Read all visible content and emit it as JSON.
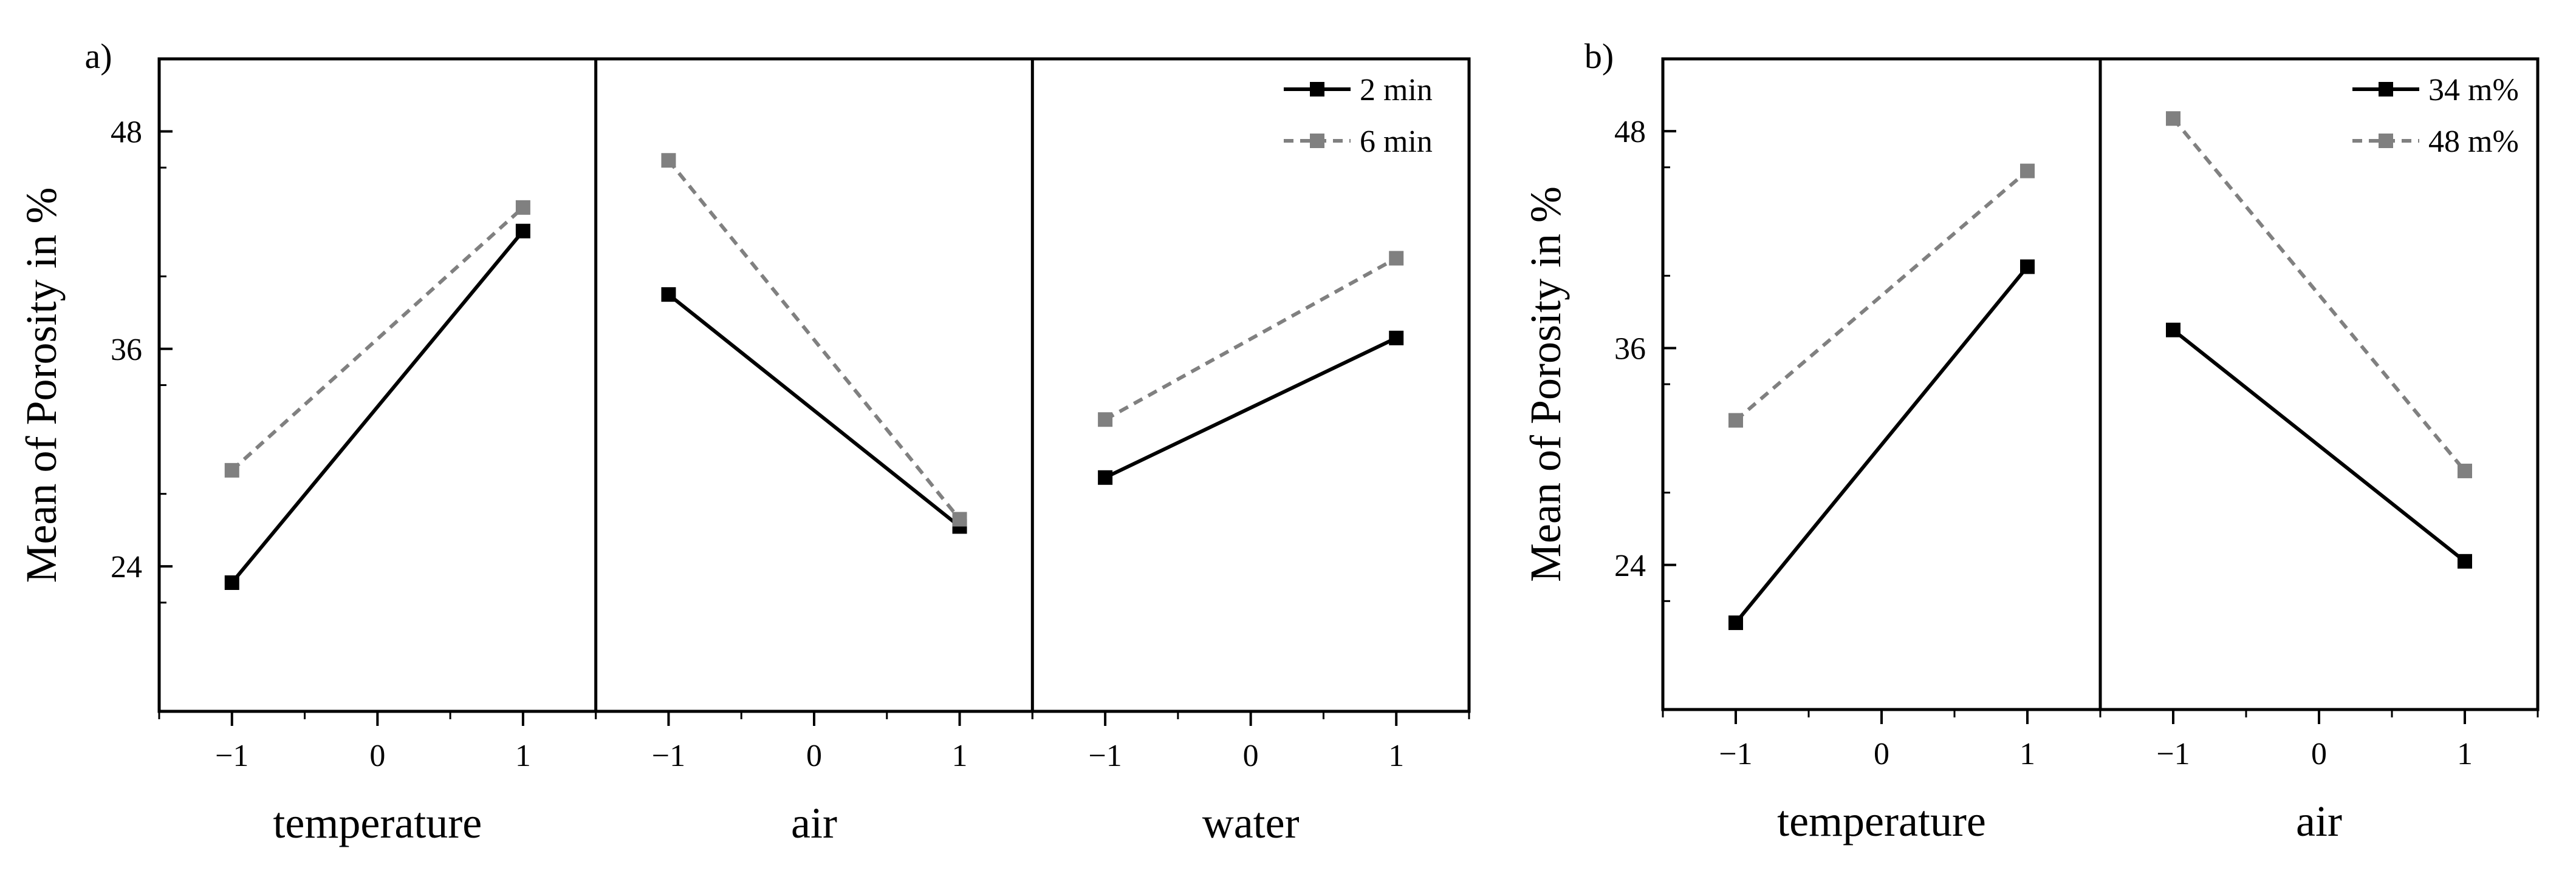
{
  "chart_data": [
    {
      "type": "line",
      "panel_label": "a)",
      "ylabel": "Mean of Porosity in %",
      "ylim": [
        16,
        52
      ],
      "yticks": [
        24,
        36,
        48
      ],
      "y_tick_labels": [
        "24",
        "36",
        "48"
      ],
      "xlim": [
        -1.5,
        1.5
      ],
      "xticks": [
        -1,
        0,
        1
      ],
      "x_tick_labels": [
        "−1",
        "0",
        "1"
      ],
      "legend": {
        "position": "top-right"
      },
      "series": [
        {
          "name": "2 min",
          "color": "#000000",
          "dashed": false
        },
        {
          "name": "6 min",
          "color": "#808080",
          "dashed": true
        }
      ],
      "subplots": [
        {
          "xlabel": "temperature",
          "x": [
            -1,
            1
          ],
          "values": {
            "2 min": [
              23.1,
              42.5
            ],
            "6 min": [
              29.3,
              43.8
            ]
          }
        },
        {
          "xlabel": "air",
          "x": [
            -1,
            1
          ],
          "values": {
            "2 min": [
              39.0,
              26.2
            ],
            "6 min": [
              46.4,
              26.6
            ]
          }
        },
        {
          "xlabel": "water",
          "x": [
            -1,
            1
          ],
          "values": {
            "2 min": [
              28.9,
              36.6
            ],
            "6 min": [
              32.1,
              41.0
            ]
          }
        }
      ]
    },
    {
      "type": "line",
      "panel_label": "b)",
      "ylabel": "Mean of Porosity in %",
      "ylim": [
        16,
        52
      ],
      "yticks": [
        24,
        36,
        48
      ],
      "y_tick_labels": [
        "24",
        "36",
        "48"
      ],
      "xlim": [
        -1.5,
        1.5
      ],
      "xticks": [
        -1,
        0,
        1
      ],
      "x_tick_labels": [
        "−1",
        "0",
        "1"
      ],
      "legend": {
        "position": "top-right"
      },
      "series": [
        {
          "name": "34 m%",
          "color": "#000000",
          "dashed": false
        },
        {
          "name": "48 m%",
          "color": "#808080",
          "dashed": true
        }
      ],
      "subplots": [
        {
          "xlabel": "temperature",
          "x": [
            -1,
            1
          ],
          "values": {
            "34 m%": [
              20.8,
              40.5
            ],
            "48 m%": [
              32.0,
              45.8
            ]
          }
        },
        {
          "xlabel": "air",
          "x": [
            -1,
            1
          ],
          "values": {
            "34 m%": [
              37.0,
              24.2
            ],
            "48 m%": [
              48.7,
              29.2
            ]
          }
        }
      ]
    }
  ]
}
